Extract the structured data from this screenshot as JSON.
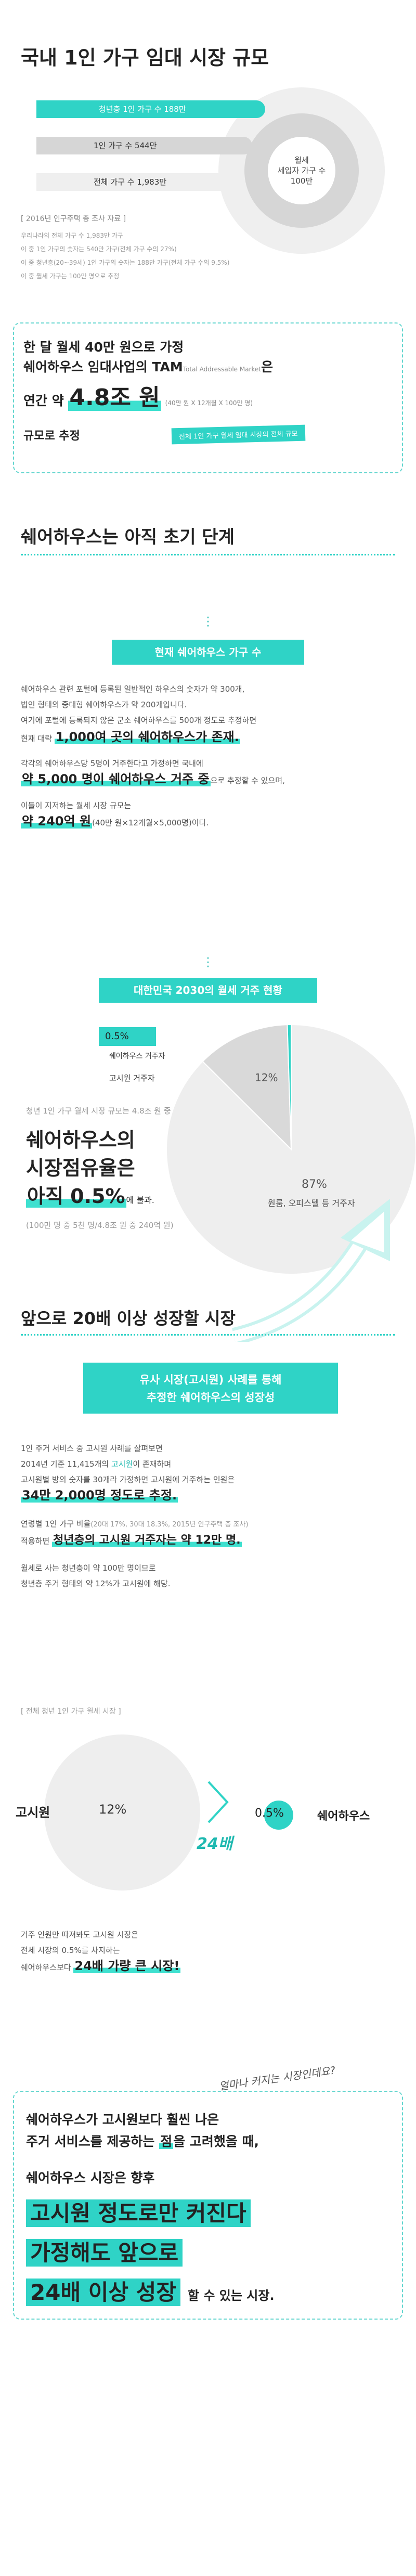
{
  "section1": {
    "title": "국내 1인 가구 임대 시장 규모",
    "circle_lines": [
      "월세",
      "세입자 가구 수",
      "100만"
    ],
    "bars": [
      "청년층 1인 가구 수 188만",
      "1인 가구 수 544만",
      "전체 가구 수 1,983만"
    ],
    "source": "[ 2016년 인구주택 총 조사 자료 ]",
    "notes": [
      "우리나라의 전체 가구 수 1,983만 가구",
      "이 중 1인 가구의 숫자는 540만 가구(전체 가구 수의 27%)",
      "이 중 청년층(20~39세) 1인 가구의 숫자는 188만 가구(전체 가구 수의 9.5%)",
      "이 중 월세 가구는 100만 명으로 추정"
    ]
  },
  "tam": {
    "line1": "한 달 월세 40만 원으로 가정",
    "line2_prefix": "쉐어하우스 임대사업의 TAM",
    "line2_small": "Total Addressable Market",
    "line2_suffix": "은",
    "line3_prefix": "연간 약 ",
    "line3_value": "4.8조 원",
    "line3_formula": "(40만 원 X 12개월 X 100만 명)",
    "line4": "규모로 추정",
    "note": "전체 1인 가구 월세 임대 시장의 전체 규모"
  },
  "section2": {
    "title": "쉐어하우스는 아직 초기 단계",
    "banner1": "현재 쉐어하우스 가구 수",
    "p1": [
      "쉐어하우스 관련 포털에 등록된 일반적인 하우스의 숫자가 약 300개,",
      "법인 형태의 중대형 쉐어하우스가 약 200개입니다.",
      "여기에 포털에 등록되지 않은 군소 쉐어하우스를 500개 정도로 추정하면"
    ],
    "p1_last_prefix": "현재 대략 ",
    "p1_last_hl": "1,000여 곳의 쉐어하우스가 존재.",
    "p2_line1": "각각의 쉐어하우스당 5명이 거주한다고 가정하면 국내에",
    "p2_hl": "약 5,000 명이 쉐어하우스 거주 중",
    "p2_suffix": "으로 추정할 수 있으며,",
    "p3_line1": "이들이 지저하는 월세 시장 규모는",
    "p3_hl": "약 240억 원",
    "p3_suffix": "(40만 원×12개월×5,000명)이다.",
    "banner2": "대한민국 2030의 월세 거주 현황",
    "pie_labels": {
      "share": "0.5%",
      "share_name": "쉐어하우스 거주자",
      "goshiwon": "고시원 거주자",
      "goshiwon_pct": "12%",
      "other_pct": "87%",
      "other_name": "원룸, 오피스텔 등 거주자"
    },
    "pie_note": "청년 1인 가구 월세 시장 규모는 4.8조 원 중",
    "big1": "쉐어하우스의",
    "big2": "시장점유율은",
    "big3_hl": "아직 0.5%",
    "big3_suffix": "에 불과.",
    "pie_foot": "(100만 명 중 5천 명/4.8조 원 중 240억 원)"
  },
  "chart_data": {
    "type": "pie",
    "categories": [
      "원룸, 오피스텔 등 거주자",
      "고시원 거주자",
      "쉐어하우스 거주자"
    ],
    "values": [
      87,
      12,
      0.5
    ]
  },
  "section3": {
    "title": "앞으로 20배 이상 성장할 시장",
    "banner_lines": [
      "유사 시장(고시원) 사례를 통해",
      "추정한 쉐어하우스의 성장성"
    ],
    "p1_line1": "1인 주거 서비스 중 고시원 사례를 살펴보면",
    "p1_line2_prefix": "2014년 기준 11,415개의 ",
    "p1_line2_link": "고시원",
    "p1_line2_suffix": "이 존재하며",
    "p1_line3": "고시원별 방의 숫자를 30개라 가정하면 고시원에 거주하는 인원은",
    "p1_hl": "34만 2,000명 정도로 추정.",
    "p2_prefix": "연령별 1인 가구 비율",
    "p2_grey": "(20대 17%, 30대 18.3%, 2015년 인구주택 총 조사)",
    "p2_line2_prefix": "적용하면 ",
    "p2_hl": "청년층의 고시원 거주자는 약 12만 명.",
    "p3": [
      "월세로 사는 청년층이 약 100만 명이므로",
      "청년층 주거 형태의 약 12%가 고시원에 해당."
    ],
    "compare_label": "[ 전체 청년 1인 가구 월세 시장 ]",
    "left_name": "고시원",
    "left_pct": "12%",
    "mult": "24배",
    "right_pct": "0.5%",
    "right_name": "쉐어하우스",
    "p4": [
      "거주 인원만 따져봐도 고시원 시장은",
      "전체 시장의 0.5%를 차지하는"
    ],
    "p4_prefix": "쉐어하우스보다 ",
    "p4_hl": "24배 가량 큰 시장!"
  },
  "final": {
    "handwriting": "얼마나 커지는 시장인데요?",
    "line1": "쉐어하우스가 고시원보다 훨씬 나은",
    "line2_prefix": "주거 서비스를 제공하는 ",
    "line2_hl": "점",
    "line2_suffix": "을 고려했을 때,",
    "line3": "쉐어하우스 시장은 향후",
    "big1": "고시원 정도로만 커진다",
    "big2": "가정해도 앞으로",
    "big3": "24배 이상 성장",
    "tail": "할 수 있는 시장."
  }
}
